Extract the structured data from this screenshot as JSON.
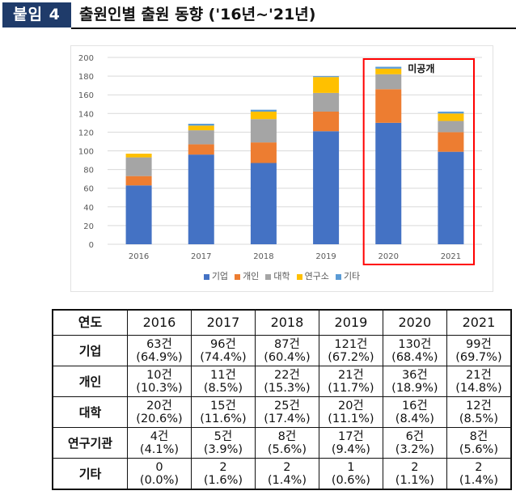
{
  "header": {
    "badge": "붙임 4",
    "title": "출원인별 출원 동향 ('16년~'21년)"
  },
  "chart_data": {
    "type": "bar",
    "stacked": true,
    "title": "",
    "xlabel": "",
    "ylabel": "",
    "categories": [
      "2016",
      "2017",
      "2018",
      "2019",
      "2020",
      "2021"
    ],
    "series": [
      {
        "name": "기업",
        "color": "#4472c4",
        "values": [
          63,
          96,
          87,
          121,
          130,
          99
        ]
      },
      {
        "name": "개인",
        "color": "#ed7d31",
        "values": [
          10,
          11,
          22,
          21,
          36,
          21
        ]
      },
      {
        "name": "대학",
        "color": "#a5a5a5",
        "values": [
          20,
          15,
          25,
          20,
          16,
          12
        ]
      },
      {
        "name": "연구소",
        "color": "#ffc000",
        "values": [
          4,
          5,
          8,
          17,
          6,
          8
        ]
      },
      {
        "name": "기타",
        "color": "#5b9bd5",
        "values": [
          0,
          2,
          2,
          1,
          2,
          2
        ]
      }
    ],
    "ylim": [
      0,
      200
    ],
    "yticks": [
      "0",
      "20",
      "40",
      "60",
      "80",
      "100",
      "120",
      "140",
      "160",
      "180",
      "200"
    ],
    "grid": true,
    "legend": "bottom",
    "annotation": {
      "text": "미공개",
      "highlight_categories": [
        "2020",
        "2021"
      ],
      "color": "#ff0000"
    }
  },
  "table": {
    "header": [
      "연도",
      "2016",
      "2017",
      "2018",
      "2019",
      "2020",
      "2021"
    ],
    "rows": [
      {
        "label": "기업",
        "cells": [
          [
            "63건",
            "(64.9%)"
          ],
          [
            "96건",
            "(74.4%)"
          ],
          [
            "87건",
            "(60.4%)"
          ],
          [
            "121건",
            "(67.2%)"
          ],
          [
            "130건",
            "(68.4%)"
          ],
          [
            "99건",
            "(69.7%)"
          ]
        ]
      },
      {
        "label": "개인",
        "cells": [
          [
            "10건",
            "(10.3%)"
          ],
          [
            "11건",
            "(8.5%)"
          ],
          [
            "22건",
            "(15.3%)"
          ],
          [
            "21건",
            "(11.7%)"
          ],
          [
            "36건",
            "(18.9%)"
          ],
          [
            "21건",
            "(14.8%)"
          ]
        ]
      },
      {
        "label": "대학",
        "cells": [
          [
            "20건",
            "(20.6%)"
          ],
          [
            "15건",
            "(11.6%)"
          ],
          [
            "25건",
            "(17.4%)"
          ],
          [
            "20건",
            "(11.1%)"
          ],
          [
            "16건",
            "(8.4%)"
          ],
          [
            "12건",
            "(8.5%)"
          ]
        ]
      },
      {
        "label": "연구기관",
        "cells": [
          [
            "4건",
            "(4.1%)"
          ],
          [
            "5건",
            "(3.9%)"
          ],
          [
            "8건",
            "(5.6%)"
          ],
          [
            "17건",
            "(9.4%)"
          ],
          [
            "6건",
            "(3.2%)"
          ],
          [
            "8건",
            "(5.6%)"
          ]
        ]
      },
      {
        "label": "기타",
        "cells": [
          [
            "0",
            "(0.0%)"
          ],
          [
            "2",
            "(1.6%)"
          ],
          [
            "2",
            "(1.4%)"
          ],
          [
            "1",
            "(0.6%)"
          ],
          [
            "2",
            "(1.1%)"
          ],
          [
            "2",
            "(1.4%)"
          ]
        ]
      }
    ]
  }
}
